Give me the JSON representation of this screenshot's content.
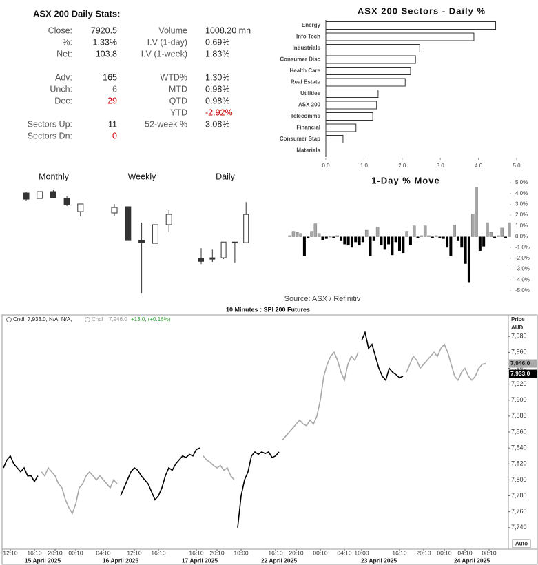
{
  "stats": {
    "title": "ASX 200 Daily Stats:",
    "left": [
      {
        "label": "Close:",
        "value": "7920.5"
      },
      {
        "label": "%:",
        "value": "1.33%"
      },
      {
        "label": "Net:",
        "value": "103.8"
      },
      {
        "label": "Adv:",
        "value": "165"
      },
      {
        "label": "Unch:",
        "value": "6",
        "color": "#666666"
      },
      {
        "label": "Dec:",
        "value": "29",
        "color": "#c00000"
      },
      {
        "label": "Sectors Up:",
        "value": "11"
      },
      {
        "label": "Sectors Dn:",
        "value": "0",
        "color": "#c00000"
      }
    ],
    "right": [
      {
        "label": "Volume",
        "value": "1008.20 mn"
      },
      {
        "label": "I.V (1-day)",
        "value": "0.69%"
      },
      {
        "label": "I.V (1-week)",
        "value": "1.83%"
      },
      {
        "label": "WTD%",
        "value": "1.30%"
      },
      {
        "label": "MTD",
        "value": "0.98%"
      },
      {
        "label": "QTD",
        "value": "0.98%"
      },
      {
        "label": "YTD",
        "value": "-2.92%",
        "color": "#c00000"
      },
      {
        "label": "52-week %",
        "value": "3.08%"
      }
    ]
  },
  "source": "Source: ASX / Refinitiv",
  "chart_data": [
    {
      "type": "bar",
      "orientation": "horizontal",
      "title": "ASX 200 Sectors - Daily %",
      "categories": [
        "Energy",
        "Info Tech",
        "Industrials",
        "Consumer Disc",
        "Health Care",
        "Real Estate",
        "Utilities",
        "ASX 200",
        "Telecomms",
        "Financial",
        "Consumer Stap",
        "Materials"
      ],
      "values": [
        4.45,
        3.88,
        2.46,
        2.35,
        2.22,
        2.08,
        1.37,
        1.33,
        1.23,
        0.79,
        0.45,
        0
      ],
      "color": "#ffffff",
      "edge_color": "#333333",
      "xlim": [
        0,
        5
      ],
      "xticks": [
        {
          "value": 0,
          "label": "0.0"
        },
        {
          "value": 1,
          "label": "1.0"
        },
        {
          "value": 2,
          "label": "2.0"
        },
        {
          "value": 3,
          "label": "3.0"
        },
        {
          "value": 4,
          "label": "4.0"
        },
        {
          "value": 5,
          "label": "5.0"
        }
      ]
    },
    {
      "type": "candlestick",
      "title": "Monthly",
      "open": [
        8048,
        7984,
        8064,
        7984,
        7832
      ],
      "high": [
        8064,
        8064,
        8080,
        8008,
        7920.5
      ],
      "low": [
        7960,
        7984,
        7984,
        7896,
        7776
      ],
      "close": [
        7976,
        8064,
        7992,
        7912,
        7920.5
      ],
      "ylim": [
        7770,
        8090
      ],
      "up_color": "#ffffff",
      "down_color": "#333333"
    },
    {
      "type": "candlestick",
      "title": "Weekly",
      "open": [
        7934,
        7993,
        7670,
        7644,
        7822
      ],
      "high": [
        8019,
        7993,
        7842,
        7822,
        7960
      ],
      "low": [
        7907,
        7670,
        7170,
        7644,
        7749
      ],
      "close": [
        7986,
        7670,
        7651,
        7822,
        7920.5
      ],
      "ylim": [
        7160,
        8030
      ],
      "up_color": "#ffffff",
      "down_color": "#333333"
    },
    {
      "type": "candlestick",
      "title": "Daily",
      "open": [
        7758,
        7761,
        7761,
        7819,
        7816.7
      ],
      "high": [
        7796,
        7791,
        7819,
        7819,
        7966
      ],
      "low": [
        7738,
        7746,
        7756,
        7743,
        7817
      ],
      "close": [
        7748,
        7756,
        7819,
        7817,
        7920.5
      ],
      "ylim": [
        7736,
        7969
      ],
      "up_color": "#ffffff",
      "down_color": "#333333"
    },
    {
      "type": "bar",
      "orientation": "vertical",
      "title": "1-Day % Move",
      "values": [
        0.1,
        0.5,
        0.4,
        0.3,
        -1.8,
        -0.1,
        0.5,
        1.2,
        0.3,
        -0.3,
        -0.2,
        0,
        -0.1,
        0.1,
        -0.4,
        -0.7,
        -0.8,
        -1.0,
        -0.5,
        -0.8,
        -0.5,
        0.6,
        -1.8,
        -0.4,
        0.9,
        -0.8,
        -1.2,
        -0.7,
        -1.7,
        -0.5,
        -1.3,
        -1.5,
        0.5,
        -0.8,
        1.0,
        -0.1,
        0.1,
        1.0,
        0.1,
        -0.1,
        0.1,
        -0.1,
        -0.2,
        -1.0,
        -1.8,
        1.1,
        -0.4,
        -1.0,
        -2.5,
        -4.2,
        2.1,
        4.6,
        -1.3,
        -0.9,
        1.3,
        0.4,
        -0.1,
        0.1,
        0.8,
        -0.1,
        1.3
      ],
      "up_color": "#a6a6a6",
      "down_color": "#000000",
      "ylim": [
        -5.5,
        5.5
      ],
      "yticks": [
        {
          "value": 5,
          "label": "5.0%"
        },
        {
          "value": 4,
          "label": "4.0%"
        },
        {
          "value": 3,
          "label": "3.0%"
        },
        {
          "value": 2,
          "label": "2.0%"
        },
        {
          "value": 1,
          "label": "1.0%"
        },
        {
          "value": 0,
          "label": "0.0%"
        },
        {
          "value": -1,
          "label": "-1.0%"
        },
        {
          "value": -2,
          "label": "-2.0%"
        },
        {
          "value": -3,
          "label": "-3.0%"
        },
        {
          "value": -4,
          "label": "-4.0%"
        },
        {
          "value": -5,
          "label": "-5.0%"
        }
      ]
    },
    {
      "type": "line",
      "title": "10 Minutes : SPI 200 Futures",
      "ylabel_lines": [
        "Price",
        "AUD"
      ],
      "scale_button": "Auto",
      "legend": [
        {
          "text": "Cndl, 7,933.0, N/A, N/A,",
          "color": "#222222"
        },
        {
          "text": "Cndl",
          "color": "#9a9a9a"
        },
        {
          "text": "7,946.0",
          "color": "#9a9a9a"
        },
        {
          "text": "+13.0, (+0.16%)",
          "color": "#2e9d2e"
        }
      ],
      "series": [
        {
          "color": "#000000",
          "values": [
            7815,
            7825,
            7830,
            7820,
            7815,
            7810,
            7815,
            7805,
            7805,
            7798,
            7805,
            null,
            null,
            null,
            null,
            null,
            null,
            null,
            null,
            null,
            null,
            null,
            null,
            null,
            null,
            null,
            null,
            null,
            null,
            null,
            null,
            null,
            null,
            null,
            7780,
            7790,
            7800,
            7810,
            7815,
            7812,
            7805,
            7800,
            7795,
            7785,
            7775,
            7780,
            7790,
            7805,
            7815,
            7812,
            7820,
            7825,
            7830,
            7828,
            7832,
            7830,
            7838,
            7840,
            null,
            null,
            null,
            null,
            null,
            null,
            null,
            null,
            null,
            null,
            7740,
            7780,
            7800,
            7810,
            7830,
            7835,
            7832,
            7835,
            7833,
            7835,
            7828,
            7830,
            7835,
            null,
            null,
            null,
            null,
            null,
            null,
            null,
            null,
            null,
            null,
            null,
            null,
            null,
            null,
            null,
            null,
            null,
            null,
            null,
            null,
            null,
            null,
            null,
            7975,
            7985,
            7965,
            7970,
            7955,
            7940,
            7930,
            7925,
            7940,
            7935,
            7932,
            7928,
            7930,
            null,
            null,
            null,
            null,
            null,
            null,
            null,
            null,
            null,
            null,
            null,
            null,
            null,
            null,
            null,
            null,
            null,
            null,
            null,
            null,
            null,
            null,
            null,
            null
          ]
        },
        {
          "color": "#a8a8a8",
          "values": [
            null,
            null,
            null,
            null,
            null,
            null,
            null,
            null,
            null,
            null,
            null,
            7810,
            7805,
            7815,
            7810,
            7805,
            7795,
            7790,
            7775,
            7765,
            7758,
            7770,
            7790,
            7795,
            7805,
            7810,
            7805,
            7800,
            7805,
            7800,
            7795,
            7790,
            7800,
            7795,
            null,
            null,
            null,
            null,
            null,
            null,
            null,
            null,
            null,
            null,
            null,
            null,
            null,
            null,
            null,
            null,
            null,
            null,
            null,
            null,
            null,
            null,
            null,
            null,
            7830,
            7825,
            7822,
            7818,
            7815,
            7818,
            7812,
            7815,
            7805,
            7800,
            null,
            null,
            null,
            null,
            null,
            null,
            null,
            null,
            null,
            null,
            null,
            null,
            null,
            7850,
            7855,
            7860,
            7865,
            7870,
            7875,
            7870,
            7868,
            7875,
            7870,
            7880,
            7900,
            7930,
            7945,
            7955,
            7960,
            7950,
            7935,
            7925,
            7945,
            7955,
            7950,
            7960,
            null,
            null,
            null,
            null,
            null,
            null,
            null,
            null,
            null,
            null,
            null,
            null,
            null,
            7935,
            7945,
            7955,
            7950,
            7940,
            7945,
            7950,
            7955,
            7960,
            7955,
            7965,
            7970,
            7960,
            7945,
            7930,
            7925,
            7935,
            7940,
            7930,
            7925,
            7930,
            7940,
            7945,
            7946
          ]
        }
      ],
      "xlim": [
        -0.4,
        146.6
      ],
      "ylim": [
        7713,
        8007
      ],
      "yticks": [
        {
          "value": 7740,
          "label": "7,740"
        },
        {
          "value": 7760,
          "label": "7,760"
        },
        {
          "value": 7780,
          "label": "7,780"
        },
        {
          "value": 7800,
          "label": "7,800"
        },
        {
          "value": 7820,
          "label": "7,820"
        },
        {
          "value": 7840,
          "label": "7,840"
        },
        {
          "value": 7860,
          "label": "7,860"
        },
        {
          "value": 7880,
          "label": "7,880"
        },
        {
          "value": 7900,
          "label": "7,900"
        },
        {
          "value": 7920,
          "label": "7,920"
        },
        {
          "value": 7940,
          "label": "7,940"
        },
        {
          "value": 7960,
          "label": "7,960"
        },
        {
          "value": 7980,
          "label": "7,980"
        }
      ],
      "xticks": [
        {
          "value": 2,
          "label": "12:10"
        },
        {
          "value": 9,
          "label": "16:10"
        },
        {
          "value": 15,
          "label": "20:10"
        },
        {
          "value": 21,
          "label": "00:10"
        },
        {
          "value": 29,
          "label": "04:10"
        },
        {
          "value": 38,
          "label": "12:10"
        },
        {
          "value": 45,
          "label": "16:10"
        },
        {
          "value": 56,
          "label": "16:10"
        },
        {
          "value": 62,
          "label": "20:10"
        },
        {
          "value": 69,
          "label": "10:00"
        },
        {
          "value": 79,
          "label": "16:10"
        },
        {
          "value": 85,
          "label": "20:10"
        },
        {
          "value": 92,
          "label": "00:10"
        },
        {
          "value": 99,
          "label": "04:10"
        },
        {
          "value": 104,
          "label": "10:00"
        },
        {
          "value": 115,
          "label": "16:10"
        },
        {
          "value": 122,
          "label": "20:10"
        },
        {
          "value": 128,
          "label": "00:10"
        },
        {
          "value": 134,
          "label": "04:10"
        },
        {
          "value": 141,
          "label": "08:10"
        }
      ],
      "date_ticks": [
        {
          "value": 11.4,
          "label": "15 April 2025"
        },
        {
          "value": 34,
          "label": "16 April 2025"
        },
        {
          "value": 57,
          "label": "17 April 2025"
        },
        {
          "value": 80,
          "label": "22 April 2025"
        },
        {
          "value": 109,
          "label": "23 April 2025"
        },
        {
          "value": 136,
          "label": "24 April 2025"
        }
      ],
      "last_labels": [
        {
          "value": 7946,
          "label": "7,946.0",
          "color": "#a8a8a8"
        },
        {
          "value": 7933,
          "label": "7,933.0",
          "color": "#000000"
        }
      ]
    }
  ]
}
